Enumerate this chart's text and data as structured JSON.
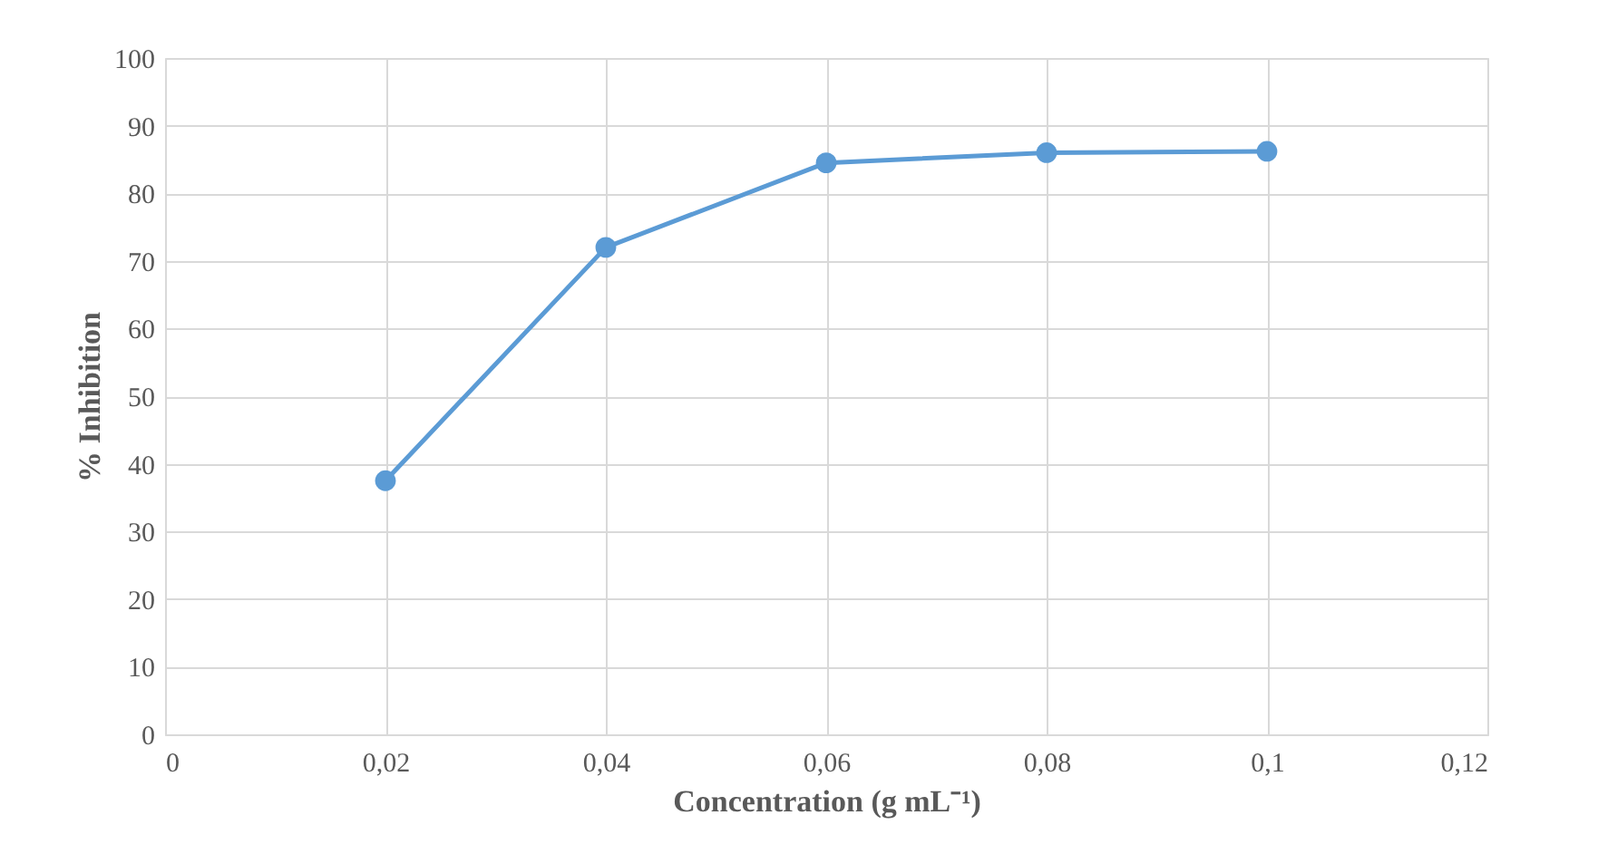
{
  "chart_data": {
    "type": "line",
    "xlabel": "Concentration (g mL⁻¹)",
    "ylabel": "% Inhibition",
    "x": [
      0.02,
      0.04,
      0.06,
      0.08,
      0.1
    ],
    "series": [
      {
        "color": "#5b9bd5",
        "values": [
          37.5,
          72,
          84.5,
          86,
          86.2
        ]
      }
    ],
    "xlim": [
      0,
      0.12
    ],
    "xticks": [
      0,
      {
        "value": 0.02,
        "label": "0,02"
      },
      {
        "value": 0.04,
        "label": "0,04"
      },
      {
        "value": 0.06,
        "label": "0,06"
      },
      {
        "value": 0.08,
        "label": "0,08"
      },
      {
        "value": 0.1,
        "label": "0,1"
      },
      {
        "value": 0.12,
        "label": "0,12"
      }
    ],
    "ylim": [
      0,
      100
    ],
    "yticks": [
      0,
      10,
      20,
      30,
      40,
      50,
      60,
      70,
      80,
      90,
      100
    ],
    "grid": true,
    "marker": "circle",
    "line_style": "solid"
  }
}
